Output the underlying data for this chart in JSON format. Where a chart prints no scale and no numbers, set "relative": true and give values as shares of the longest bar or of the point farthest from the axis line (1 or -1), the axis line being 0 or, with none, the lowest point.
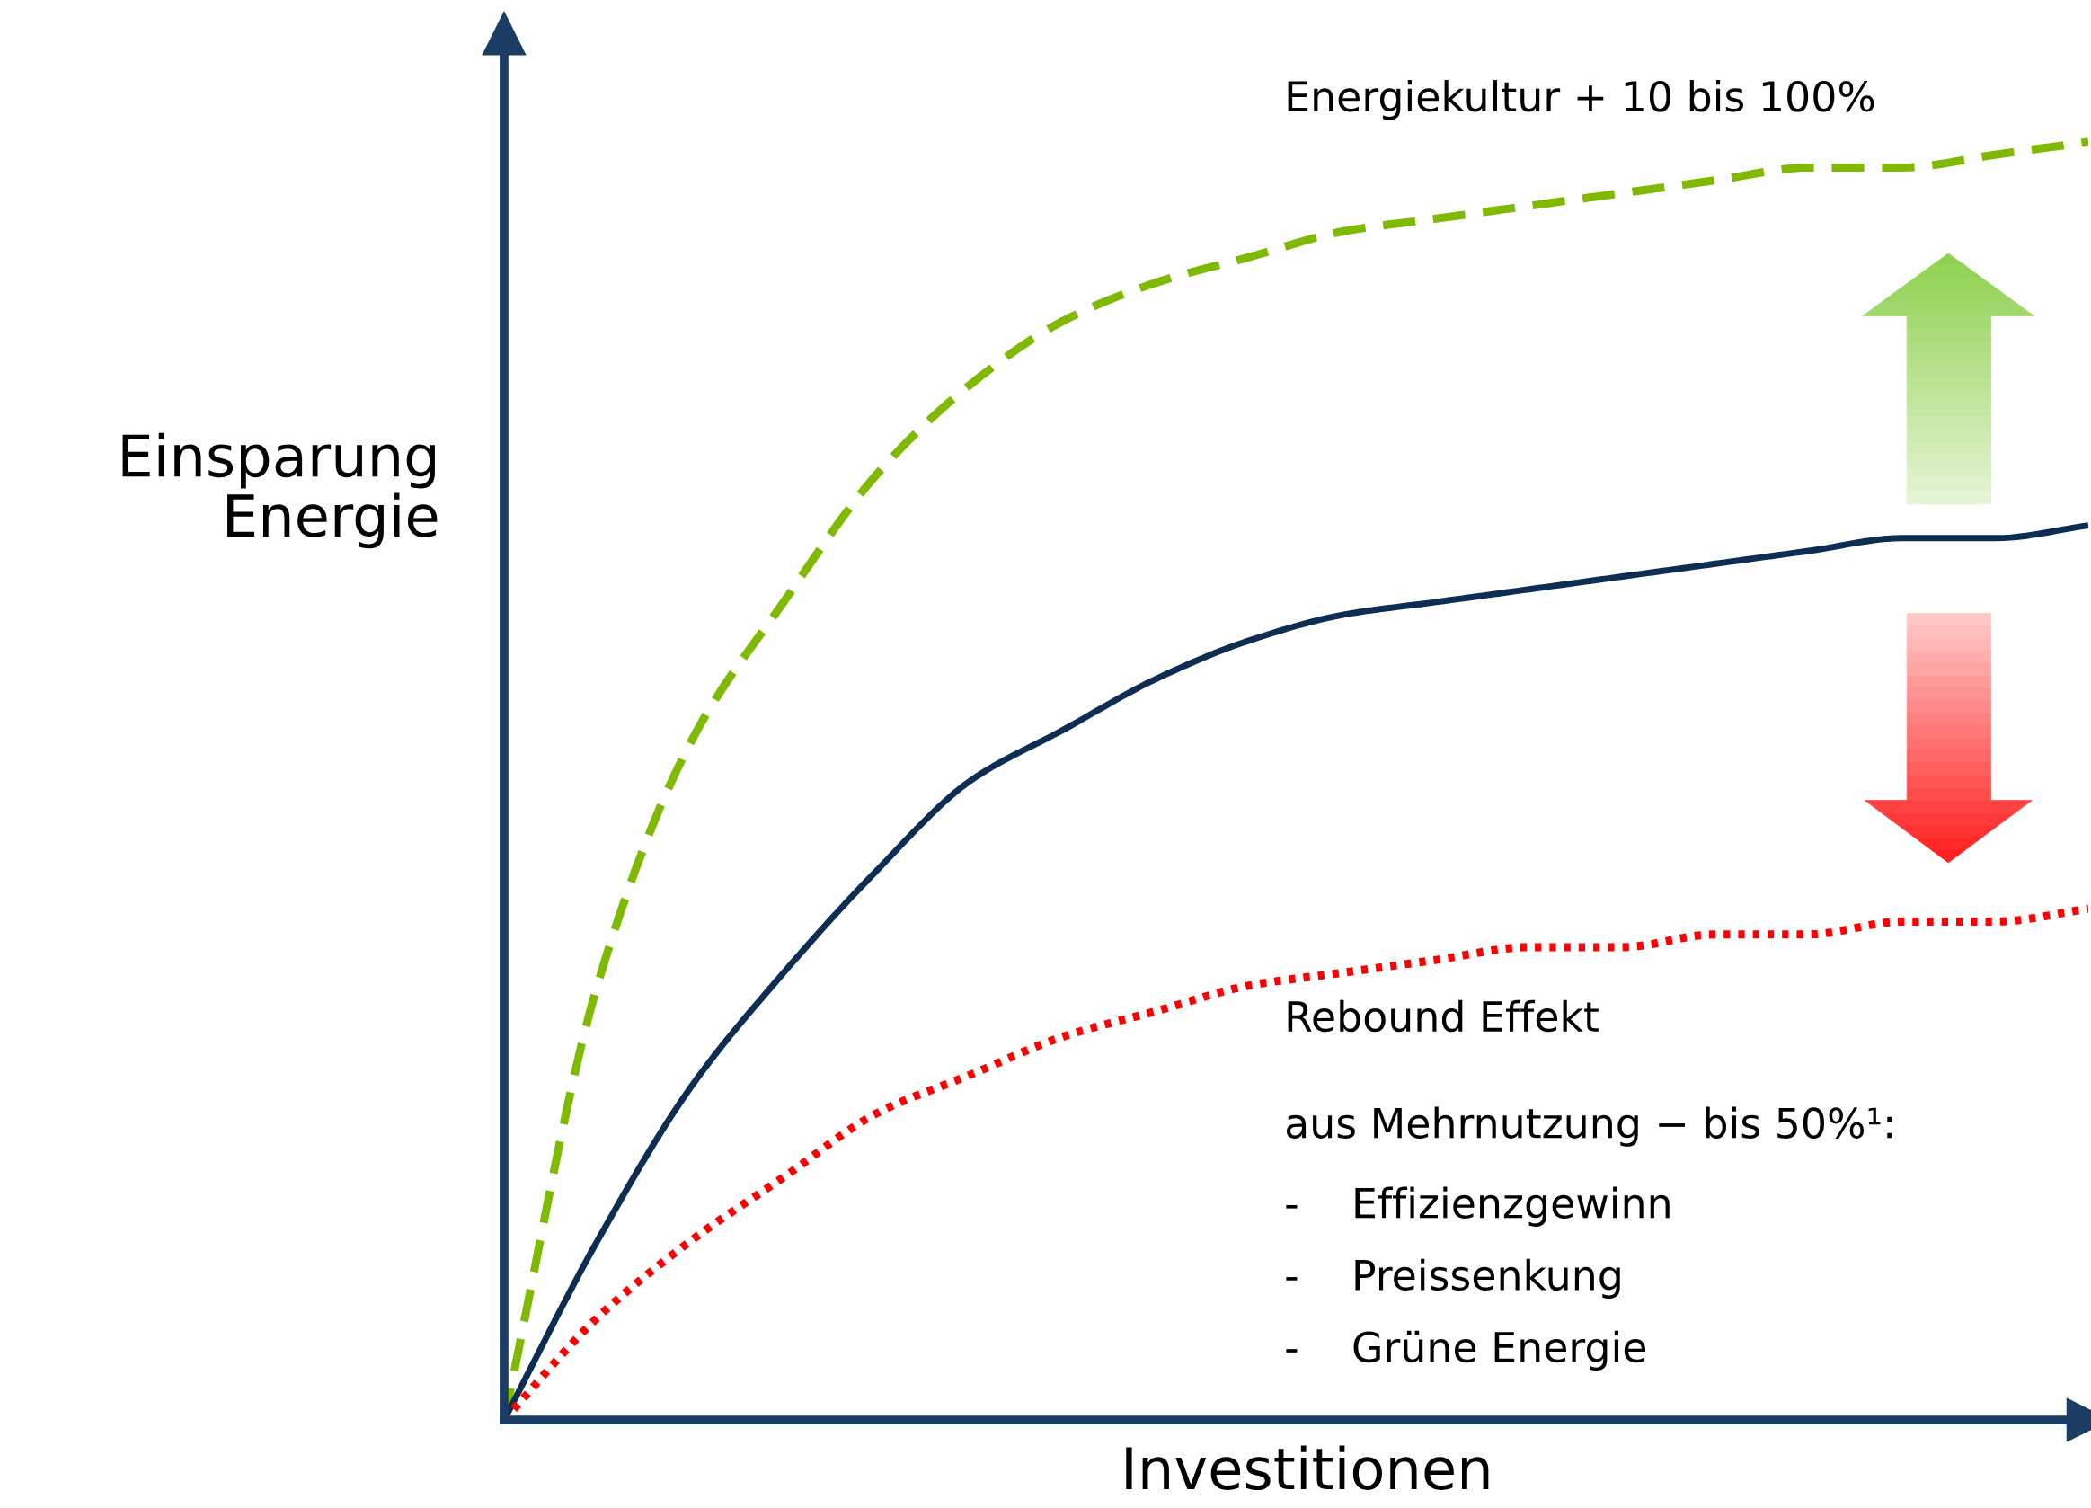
{
  "chart_data": {
    "type": "line",
    "relative": true,
    "xlabel": "Investitionen",
    "ylabel": "Einsparung\nEnergie",
    "categories": [
      null,
      null,
      null,
      null,
      null,
      null,
      null,
      null,
      null,
      null,
      null,
      null,
      null,
      null,
      null,
      null,
      null,
      null
    ],
    "series": [
      {
        "color": "#7fba00",
        "line_style": "dashed",
        "values": [
          0,
          0.34,
          0.53,
          0.64,
          0.74,
          0.81,
          0.86,
          0.89,
          0.91,
          0.93,
          0.94,
          0.95,
          0.96,
          0.97,
          0.98,
          0.98,
          0.99,
          1
        ]
      },
      {
        "color": "#0d2d52",
        "line_style": "solid",
        "values": [
          0,
          0.14,
          0.26,
          0.35,
          0.43,
          0.5,
          0.54,
          0.58,
          0.61,
          0.63,
          0.64,
          0.65,
          0.66,
          0.67,
          0.68,
          0.69,
          0.69,
          0.7
        ]
      },
      {
        "color": "#ff0000",
        "line_style": "dotted",
        "values": [
          0,
          0.08,
          0.14,
          0.19,
          0.24,
          0.27,
          0.3,
          0.32,
          0.34,
          0.35,
          0.36,
          0.37,
          0.37,
          0.38,
          0.38,
          0.39,
          0.39,
          0.4
        ]
      }
    ],
    "annotations": [
      "Energiekultur + 10 bis 100%",
      "Rebound Effekt",
      "aus Mehrnutzung − bis 50%¹:",
      "-    Effizienzgewinn",
      "-    Preissenkung",
      "-    Grüne Energie"
    ],
    "legend": false,
    "marker": "none"
  }
}
